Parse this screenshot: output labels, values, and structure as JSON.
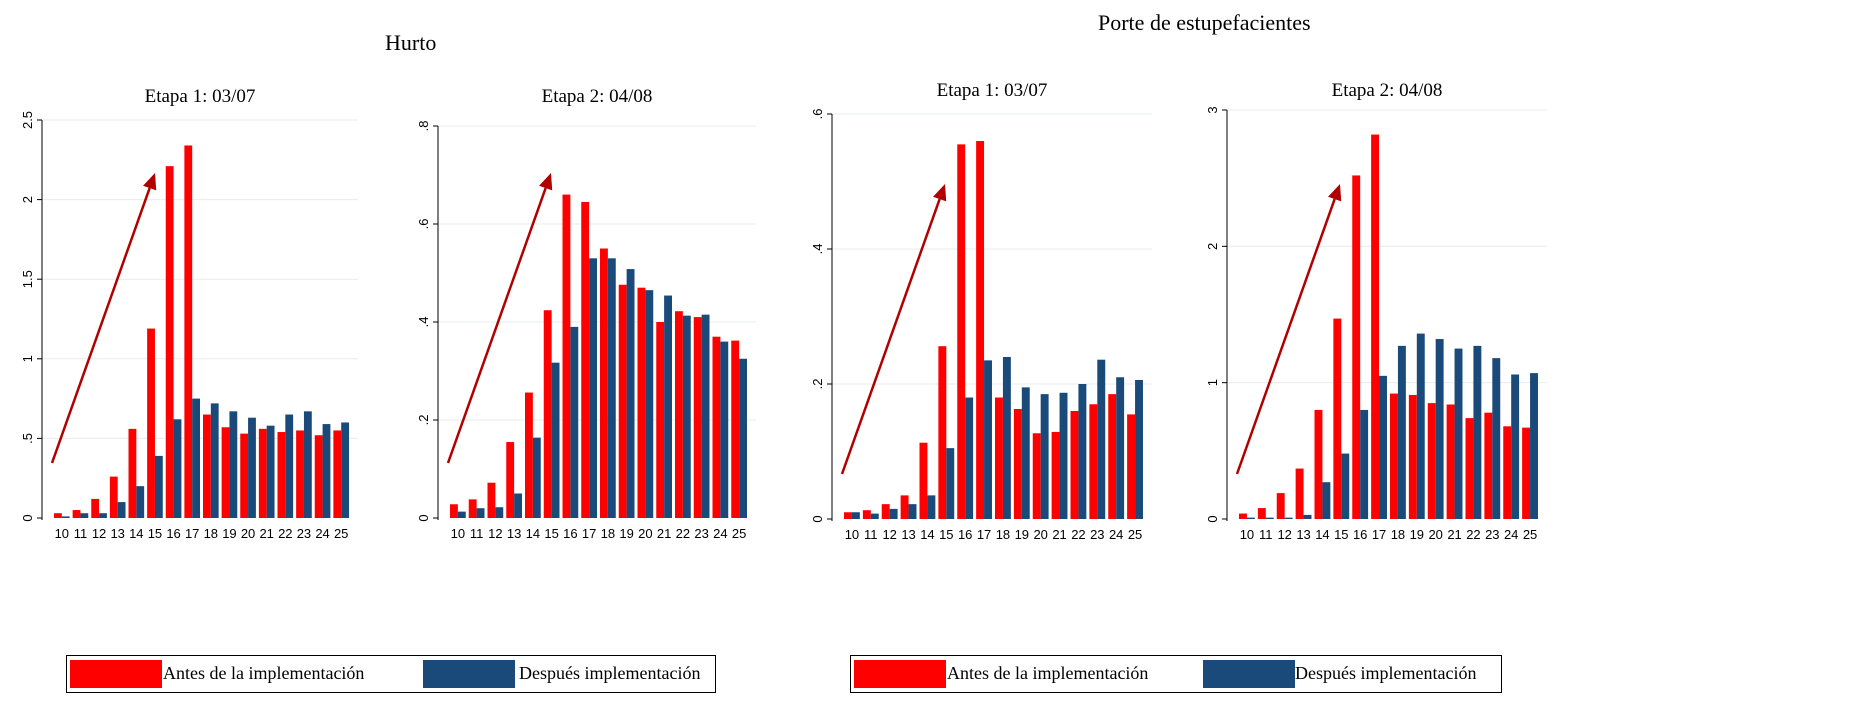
{
  "group_titles": [
    "Hurto",
    "Porte de estupefacientes"
  ],
  "legend": {
    "before_label": "Antes de la implementación",
    "after_label": "Después implementación",
    "before_color": "#ff0000",
    "after_color": "#1a4a7a"
  },
  "chart_data": [
    {
      "type": "bar",
      "group": "Hurto",
      "title": "Etapa 1: 03/07",
      "categories": [
        "10",
        "11",
        "12",
        "13",
        "14",
        "15",
        "16",
        "17",
        "18",
        "19",
        "20",
        "21",
        "22",
        "23",
        "24",
        "25"
      ],
      "yticks": [
        "0",
        ".5",
        "1",
        "1.5",
        "2",
        "2.5"
      ],
      "ylim": [
        0,
        2.5
      ],
      "series": [
        {
          "name": "Antes de la implementación",
          "values": [
            0.03,
            0.05,
            0.12,
            0.26,
            0.56,
            1.19,
            2.21,
            2.34,
            0.65,
            0.57,
            0.53,
            0.56,
            0.54,
            0.55,
            0.52,
            0.55
          ]
        },
        {
          "name": "Después implementación",
          "values": [
            0.01,
            0.03,
            0.03,
            0.1,
            0.2,
            0.39,
            0.62,
            0.75,
            0.72,
            0.67,
            0.63,
            0.58,
            0.65,
            0.67,
            0.59,
            0.6
          ]
        }
      ]
    },
    {
      "type": "bar",
      "group": "Hurto",
      "title": "Etapa 2: 04/08",
      "categories": [
        "10",
        "11",
        "12",
        "13",
        "14",
        "15",
        "16",
        "17",
        "18",
        "19",
        "20",
        "21",
        "22",
        "23",
        "24",
        "25"
      ],
      "yticks": [
        "0",
        ".2",
        ".4",
        ".6",
        ".8"
      ],
      "ylim": [
        0,
        0.8
      ],
      "series": [
        {
          "name": "Antes de la implementación",
          "values": [
            0.028,
            0.038,
            0.072,
            0.155,
            0.256,
            0.424,
            0.66,
            0.645,
            0.55,
            0.476,
            0.47,
            0.4,
            0.422,
            0.41,
            0.37,
            0.362
          ]
        },
        {
          "name": "Después implementación",
          "values": [
            0.013,
            0.02,
            0.022,
            0.05,
            0.164,
            0.317,
            0.39,
            0.53,
            0.53,
            0.508,
            0.465,
            0.454,
            0.413,
            0.415,
            0.36,
            0.325
          ]
        }
      ]
    },
    {
      "type": "bar",
      "group": "Porte de estupefacientes",
      "title": "Etapa 1: 03/07",
      "categories": [
        "10",
        "11",
        "12",
        "13",
        "14",
        "15",
        "16",
        "17",
        "18",
        "19",
        "20",
        "21",
        "22",
        "23",
        "24",
        "25"
      ],
      "yticks": [
        "0",
        ".2",
        ".4",
        ".6"
      ],
      "ylim": [
        0,
        0.6
      ],
      "series": [
        {
          "name": "Antes de la implementación",
          "values": [
            0.01,
            0.013,
            0.022,
            0.035,
            0.113,
            0.256,
            0.555,
            0.56,
            0.18,
            0.163,
            0.127,
            0.129,
            0.16,
            0.17,
            0.185,
            0.155
          ]
        },
        {
          "name": "Después implementación",
          "values": [
            0.01,
            0.008,
            0.015,
            0.022,
            0.035,
            0.105,
            0.18,
            0.235,
            0.24,
            0.195,
            0.185,
            0.187,
            0.2,
            0.236,
            0.21,
            0.206
          ]
        }
      ]
    },
    {
      "type": "bar",
      "group": "Porte de estupefacientes",
      "title": "Etapa 2: 04/08",
      "categories": [
        "10",
        "11",
        "12",
        "13",
        "14",
        "15",
        "16",
        "17",
        "18",
        "19",
        "20",
        "21",
        "22",
        "23",
        "24",
        "25"
      ],
      "yticks": [
        "0",
        "1",
        "2",
        "3"
      ],
      "ylim": [
        0,
        3
      ],
      "series": [
        {
          "name": "Antes de la implementación",
          "values": [
            0.04,
            0.08,
            0.19,
            0.37,
            0.8,
            1.47,
            2.52,
            2.82,
            0.92,
            0.91,
            0.85,
            0.84,
            0.74,
            0.78,
            0.68,
            0.67
          ]
        },
        {
          "name": "Después implementación",
          "values": [
            0.01,
            0.01,
            0.01,
            0.03,
            0.27,
            0.48,
            0.8,
            1.05,
            1.27,
            1.36,
            1.32,
            1.25,
            1.27,
            1.18,
            1.06,
            1.07
          ]
        }
      ]
    }
  ]
}
